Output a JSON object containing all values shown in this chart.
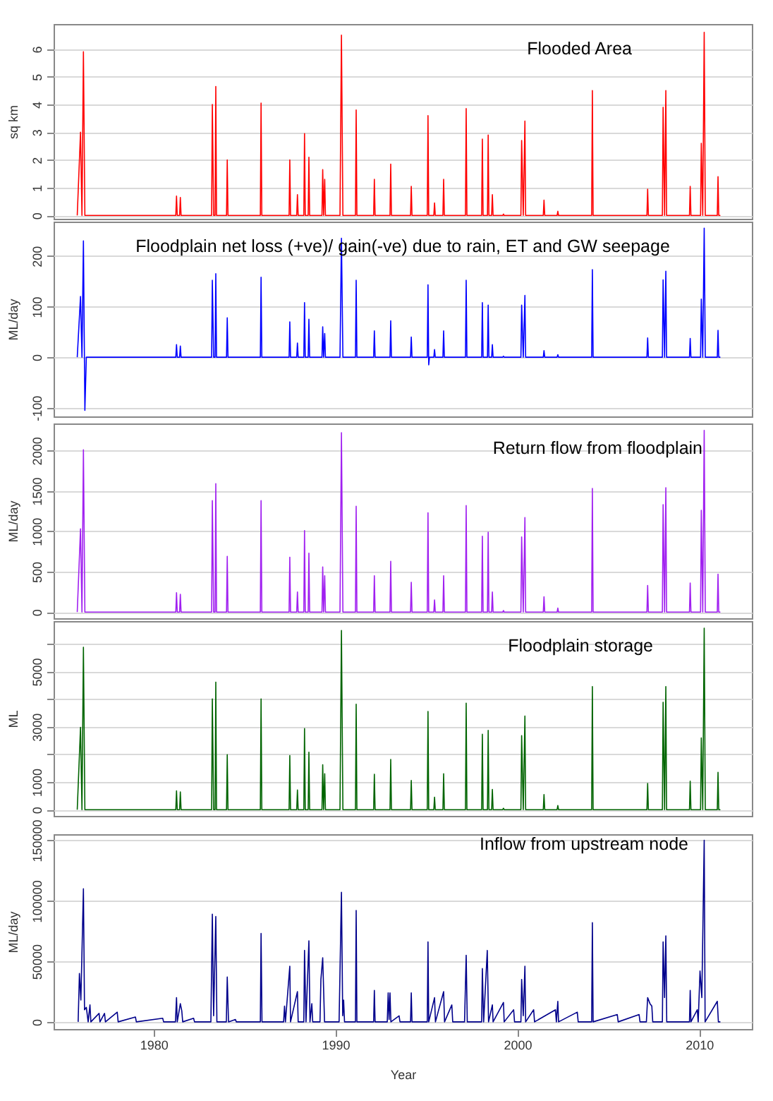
{
  "chart_data": [
    {
      "type": "line",
      "title": "Flooded Area",
      "ylabel": "sq km",
      "xlim": [
        1974.5,
        2012.9
      ],
      "ylim": [
        -0.12,
        6.9
      ],
      "yticks": [
        0,
        1,
        2,
        3,
        4,
        5,
        6
      ],
      "grid": "y",
      "tick_labels": "y",
      "series": [
        {
          "color": "#ff0000",
          "x": [
            1975.8,
            1975.98,
            1976.06,
            1976.14,
            1976.22,
            1976.3,
            1981.22,
            1981.26,
            1981.3,
            1981.43,
            1981.47,
            1981.51,
            1983.19,
            1983.23,
            1983.3,
            1983.38,
            1983.42,
            1983.46,
            1984.01,
            1984.05,
            1984.09,
            1985.87,
            1985.91,
            1985.95,
            1987.45,
            1987.49,
            1987.53,
            1987.87,
            1987.91,
            1987.95,
            1988.26,
            1988.3,
            1988.34,
            1988.5,
            1988.54,
            1988.58,
            1989.26,
            1989.3,
            1989.35,
            1989.41,
            1989.45,
            1990.25,
            1990.33,
            1990.41,
            1991.1,
            1991.14,
            1991.18,
            1992.1,
            1992.14,
            1992.18,
            1993.0,
            1993.04,
            1993.08,
            1994.13,
            1994.17,
            1994.21,
            1995.05,
            1995.09,
            1995.13,
            1995.17,
            1995.41,
            1995.45,
            1995.49,
            1995.91,
            1995.95,
            1995.99,
            1997.15,
            1997.19,
            1997.23,
            1998.04,
            1998.08,
            1998.12,
            1998.36,
            1998.4,
            1998.44,
            1998.59,
            1998.63,
            1998.67,
            1999.2,
            1999.24,
            1999.28,
            2000.2,
            2000.24,
            2000.33,
            2000.42,
            2000.46,
            2001.43,
            2001.47,
            2001.51,
            2002.19,
            2002.23,
            2002.27,
            2004.09,
            2004.13,
            2004.17,
            2007.13,
            2007.17,
            2007.21,
            2007.98,
            2008.02,
            2008.1,
            2008.17,
            2008.21,
            2009.47,
            2009.51,
            2009.55,
            2010.08,
            2010.12,
            2010.2,
            2010.28,
            2010.34,
            2011.0,
            2011.04,
            2011.08,
            2011.17
          ],
          "values": [
            0,
            3.0,
            0,
            5.9,
            0,
            0,
            0,
            0.7,
            0,
            0,
            0.65,
            0,
            0,
            4.0,
            0,
            0,
            4.65,
            0,
            0,
            2.0,
            0,
            0,
            4.05,
            0,
            0,
            2.0,
            0,
            0,
            0.75,
            0,
            0,
            2.95,
            0,
            0,
            2.1,
            0,
            0,
            1.65,
            0,
            1.3,
            0,
            0,
            6.5,
            0,
            0,
            3.8,
            0,
            0,
            1.3,
            0,
            0,
            1.85,
            0,
            0,
            1.05,
            0,
            0,
            3.6,
            0,
            0,
            0,
            0.45,
            0,
            0,
            1.3,
            0,
            0,
            3.85,
            0,
            0,
            2.75,
            0,
            0,
            2.9,
            0,
            0,
            0.75,
            0,
            0,
            0.05,
            0,
            0,
            2.7,
            0,
            3.4,
            0,
            0,
            0.55,
            0,
            0,
            0.15,
            0,
            0,
            4.5,
            0,
            0,
            0.95,
            0,
            0,
            3.9,
            0,
            4.5,
            0,
            0,
            1.05,
            0,
            0,
            2.6,
            0,
            6.6,
            0,
            0,
            1.4,
            0,
            0
          ]
        }
      ]
    },
    {
      "type": "line",
      "title": "Floodplain net loss (+ve)/ gain(-ve) due to rain, ET and GW seepage",
      "ylabel": "ML/day",
      "xlim": [
        1974.5,
        2012.9
      ],
      "ylim": [
        -117,
        268
      ],
      "yticks": [
        -100,
        0,
        100,
        200
      ],
      "grid": "y",
      "tick_labels": "y",
      "series": [
        {
          "color": "#0000ff",
          "x": [
            1975.8,
            1975.98,
            1976.06,
            1976.14,
            1976.22,
            1976.3,
            1981.22,
            1981.26,
            1981.3,
            1981.43,
            1981.47,
            1981.51,
            1983.19,
            1983.23,
            1983.3,
            1983.38,
            1983.42,
            1983.46,
            1984.01,
            1984.05,
            1984.09,
            1985.87,
            1985.91,
            1985.95,
            1987.45,
            1987.49,
            1987.53,
            1987.87,
            1987.91,
            1987.95,
            1988.26,
            1988.3,
            1988.34,
            1988.5,
            1988.54,
            1988.58,
            1989.26,
            1989.3,
            1989.35,
            1989.41,
            1989.45,
            1990.25,
            1990.33,
            1990.41,
            1991.1,
            1991.14,
            1991.18,
            1992.1,
            1992.14,
            1992.18,
            1993.0,
            1993.04,
            1993.08,
            1994.13,
            1994.17,
            1994.21,
            1995.05,
            1995.09,
            1995.13,
            1995.17,
            1995.41,
            1995.45,
            1995.49,
            1995.91,
            1995.95,
            1995.99,
            1997.15,
            1997.19,
            1997.23,
            1998.04,
            1998.08,
            1998.12,
            1998.36,
            1998.4,
            1998.44,
            1998.59,
            1998.63,
            1998.67,
            1999.2,
            1999.24,
            1999.28,
            2000.2,
            2000.24,
            2000.33,
            2000.42,
            2000.46,
            2001.43,
            2001.47,
            2001.51,
            2002.19,
            2002.23,
            2002.27,
            2004.09,
            2004.13,
            2004.17,
            2007.13,
            2007.17,
            2007.21,
            2007.98,
            2008.02,
            2008.1,
            2008.17,
            2008.21,
            2009.47,
            2009.51,
            2009.55,
            2010.08,
            2010.12,
            2010.2,
            2010.28,
            2010.34,
            2011.0,
            2011.04,
            2011.08,
            2011.17
          ],
          "values": [
            0,
            120,
            0,
            230,
            -105,
            0,
            0,
            25,
            0,
            0,
            22,
            0,
            0,
            152,
            0,
            0,
            165,
            0,
            0,
            78,
            0,
            0,
            158,
            0,
            0,
            70,
            0,
            0,
            28,
            0,
            0,
            108,
            0,
            0,
            75,
            0,
            0,
            60,
            0,
            47,
            0,
            0,
            235,
            0,
            0,
            152,
            0,
            0,
            52,
            0,
            0,
            72,
            0,
            0,
            40,
            0,
            0,
            143,
            -15,
            0,
            0,
            15,
            0,
            0,
            52,
            0,
            0,
            152,
            0,
            0,
            108,
            0,
            0,
            103,
            0,
            0,
            25,
            0,
            0,
            2,
            0,
            0,
            103,
            0,
            122,
            0,
            0,
            13,
            0,
            0,
            5,
            0,
            0,
            173,
            0,
            0,
            38,
            0,
            0,
            153,
            0,
            170,
            0,
            0,
            37,
            0,
            0,
            115,
            0,
            255,
            0,
            0,
            53,
            0,
            0
          ]
        }
      ]
    },
    {
      "type": "line",
      "title": "Return flow from floodplain",
      "ylabel": "ML/day",
      "xlim": [
        1974.5,
        2012.9
      ],
      "ylim": [
        -76,
        2335
      ],
      "yticks": [
        0,
        500,
        1000,
        1500,
        2000
      ],
      "grid": "y",
      "tick_labels": "y",
      "series": [
        {
          "color": "#a020f0",
          "x": [
            1975.8,
            1975.98,
            1976.06,
            1976.14,
            1976.22,
            1976.3,
            1981.22,
            1981.26,
            1981.3,
            1981.43,
            1981.47,
            1981.51,
            1983.19,
            1983.23,
            1983.3,
            1983.38,
            1983.42,
            1983.46,
            1984.01,
            1984.05,
            1984.09,
            1985.87,
            1985.91,
            1985.95,
            1987.45,
            1987.49,
            1987.53,
            1987.87,
            1987.91,
            1987.95,
            1988.26,
            1988.3,
            1988.34,
            1988.5,
            1988.54,
            1988.58,
            1989.26,
            1989.3,
            1989.35,
            1989.41,
            1989.45,
            1990.25,
            1990.33,
            1990.41,
            1991.1,
            1991.14,
            1991.18,
            1992.1,
            1992.14,
            1992.18,
            1993.0,
            1993.04,
            1993.08,
            1994.13,
            1994.17,
            1994.21,
            1995.05,
            1995.09,
            1995.13,
            1995.17,
            1995.41,
            1995.45,
            1995.49,
            1995.91,
            1995.95,
            1995.99,
            1997.15,
            1997.19,
            1997.23,
            1998.04,
            1998.08,
            1998.12,
            1998.36,
            1998.4,
            1998.44,
            1998.59,
            1998.63,
            1998.67,
            1999.2,
            1999.24,
            1999.28,
            2000.2,
            2000.24,
            2000.33,
            2000.42,
            2000.46,
            2001.43,
            2001.47,
            2001.51,
            2002.19,
            2002.23,
            2002.27,
            2004.09,
            2004.13,
            2004.17,
            2007.13,
            2007.17,
            2007.21,
            2007.98,
            2008.02,
            2008.1,
            2008.17,
            2008.21,
            2009.47,
            2009.51,
            2009.55,
            2010.08,
            2010.12,
            2010.2,
            2010.28,
            2010.34,
            2011.0,
            2011.04,
            2011.08,
            2011.17
          ],
          "values": [
            0,
            1030,
            0,
            2010,
            0,
            0,
            0,
            240,
            0,
            0,
            220,
            0,
            0,
            1380,
            0,
            0,
            1590,
            0,
            0,
            690,
            0,
            0,
            1380,
            0,
            0,
            680,
            0,
            0,
            250,
            0,
            0,
            1010,
            0,
            0,
            730,
            0,
            0,
            560,
            0,
            450,
            0,
            0,
            2220,
            0,
            0,
            1310,
            0,
            0,
            450,
            0,
            0,
            630,
            0,
            0,
            370,
            0,
            0,
            1230,
            0,
            0,
            0,
            150,
            0,
            0,
            450,
            0,
            0,
            1320,
            0,
            0,
            940,
            0,
            0,
            990,
            0,
            0,
            250,
            0,
            0,
            20,
            0,
            0,
            930,
            0,
            1170,
            0,
            0,
            190,
            0,
            0,
            50,
            0,
            0,
            1530,
            0,
            0,
            330,
            0,
            0,
            1330,
            0,
            1540,
            0,
            0,
            360,
            0,
            0,
            1260,
            0,
            2250,
            0,
            0,
            470,
            0,
            0
          ]
        }
      ]
    },
    {
      "type": "line",
      "title": "Floodplain storage",
      "ylabel": "ML",
      "xlim": [
        1974.5,
        2012.9
      ],
      "ylim": [
        -225,
        6830
      ],
      "yticks": [
        0,
        1000,
        {
          "value": 2000,
          "label": null
        },
        3000,
        {
          "value": 4000,
          "label": null
        },
        5000,
        {
          "value": 6000,
          "label": null
        }
      ],
      "grid": "y",
      "tick_labels": "y",
      "series": [
        {
          "color": "#006400",
          "x": [
            1975.8,
            1975.98,
            1976.06,
            1976.14,
            1976.22,
            1976.3,
            1981.22,
            1981.26,
            1981.3,
            1981.43,
            1981.47,
            1981.51,
            1983.19,
            1983.23,
            1983.3,
            1983.38,
            1983.42,
            1983.46,
            1984.01,
            1984.05,
            1984.09,
            1985.87,
            1985.91,
            1985.95,
            1987.45,
            1987.49,
            1987.53,
            1987.87,
            1987.91,
            1987.95,
            1988.26,
            1988.3,
            1988.34,
            1988.5,
            1988.54,
            1988.58,
            1989.26,
            1989.3,
            1989.35,
            1989.41,
            1989.45,
            1990.25,
            1990.33,
            1990.41,
            1991.1,
            1991.14,
            1991.18,
            1992.1,
            1992.14,
            1992.18,
            1993.0,
            1993.04,
            1993.08,
            1994.13,
            1994.17,
            1994.21,
            1995.05,
            1995.09,
            1995.13,
            1995.17,
            1995.41,
            1995.45,
            1995.49,
            1995.91,
            1995.95,
            1995.99,
            1997.15,
            1997.19,
            1997.23,
            1998.04,
            1998.08,
            1998.12,
            1998.36,
            1998.4,
            1998.44,
            1998.59,
            1998.63,
            1998.67,
            1999.2,
            1999.24,
            1999.28,
            2000.2,
            2000.24,
            2000.33,
            2000.42,
            2000.46,
            2001.43,
            2001.47,
            2001.51,
            2002.19,
            2002.23,
            2002.27,
            2004.09,
            2004.13,
            2004.17,
            2007.13,
            2007.17,
            2007.21,
            2007.98,
            2008.02,
            2008.1,
            2008.17,
            2008.21,
            2009.47,
            2009.51,
            2009.55,
            2010.08,
            2010.12,
            2010.2,
            2010.28,
            2010.34,
            2011.0,
            2011.04,
            2011.08,
            2011.17
          ],
          "values": [
            0,
            2980,
            0,
            5880,
            0,
            0,
            0,
            680,
            0,
            0,
            640,
            0,
            0,
            4010,
            0,
            0,
            4620,
            0,
            0,
            1990,
            0,
            0,
            4010,
            0,
            0,
            1960,
            0,
            0,
            710,
            0,
            0,
            2940,
            0,
            0,
            2080,
            0,
            0,
            1630,
            0,
            1300,
            0,
            0,
            6490,
            0,
            0,
            3820,
            0,
            0,
            1280,
            0,
            0,
            1820,
            0,
            0,
            1060,
            0,
            0,
            3560,
            0,
            0,
            0,
            450,
            0,
            0,
            1300,
            0,
            0,
            3860,
            0,
            0,
            2730,
            0,
            0,
            2870,
            0,
            0,
            730,
            0,
            0,
            50,
            0,
            0,
            2680,
            0,
            3390,
            0,
            0,
            550,
            0,
            0,
            150,
            0,
            0,
            4460,
            0,
            0,
            950,
            0,
            0,
            3890,
            0,
            4460,
            0,
            0,
            1030,
            0,
            0,
            2600,
            0,
            6570,
            0,
            0,
            1350,
            0,
            0
          ]
        }
      ]
    },
    {
      "type": "line",
      "title": "Inflow from upstream node",
      "xlabel": "Year",
      "ylabel": "ML/day",
      "xlim": [
        1974.5,
        2012.9
      ],
      "xticks": [
        1980,
        1990,
        2000,
        2010
      ],
      "ylim": [
        -5900,
        155000
      ],
      "yticks": [
        0,
        50000,
        100000,
        150000
      ],
      "grid": "y",
      "series": [
        {
          "color": "#00008b",
          "x": [
            1975.85,
            1975.92,
            1976.0,
            1976.14,
            1976.2,
            1976.3,
            1976.4,
            1976.5,
            1976.55,
            1977.0,
            1977.05,
            1977.3,
            1977.35,
            1978.0,
            1978.05,
            1979.0,
            1979.05,
            1980.5,
            1980.55,
            1981.2,
            1981.26,
            1981.3,
            1981.47,
            1981.55,
            1981.6,
            1982.2,
            1982.25,
            1983.15,
            1983.23,
            1983.3,
            1983.42,
            1983.48,
            1984.0,
            1984.05,
            1984.12,
            1984.5,
            1984.55,
            1985.87,
            1985.91,
            1985.96,
            1987.15,
            1987.2,
            1987.25,
            1987.49,
            1987.53,
            1987.91,
            1987.95,
            1988.26,
            1988.3,
            1988.38,
            1988.54,
            1988.6,
            1988.7,
            1988.75,
            1989.15,
            1989.2,
            1989.3,
            1989.4,
            1990.2,
            1990.33,
            1990.4,
            1990.45,
            1990.5,
            1991.1,
            1991.14,
            1991.18,
            1992.1,
            1992.14,
            1992.18,
            1992.85,
            1992.9,
            1992.95,
            1993.0,
            1993.05,
            1993.5,
            1993.55,
            1994.13,
            1994.17,
            1994.21,
            1995.05,
            1995.09,
            1995.13,
            1995.45,
            1995.5,
            1995.95,
            1996.0,
            1996.4,
            1996.45,
            1997.1,
            1997.19,
            1997.25,
            1998.04,
            1998.08,
            1998.15,
            1998.35,
            1998.42,
            1998.63,
            1998.67,
            1999.24,
            1999.28,
            1999.8,
            1999.85,
            2000.2,
            2000.24,
            2000.33,
            2000.42,
            2000.46,
            2000.9,
            2000.95,
            2002.1,
            2002.15,
            2002.23,
            2002.27,
            2003.3,
            2003.35,
            2004.09,
            2004.13,
            2004.17,
            2005.5,
            2005.55,
            2006.7,
            2006.75,
            2007.1,
            2007.17,
            2007.3,
            2007.4,
            2007.45,
            2007.98,
            2008.02,
            2008.1,
            2008.17,
            2008.22,
            2009.47,
            2009.51,
            2009.55,
            2009.9,
            2009.95,
            2010.05,
            2010.15,
            2010.28,
            2010.33,
            2011.0,
            2011.06,
            2011.17
          ],
          "values": [
            0,
            40000,
            18000,
            110000,
            10000,
            12000,
            0,
            14000,
            0,
            7000,
            0,
            7000,
            0,
            8000,
            0,
            4000,
            0,
            3000,
            0,
            0,
            20000,
            0,
            15000,
            9000,
            0,
            3000,
            0,
            0,
            89000,
            5000,
            87000,
            0,
            0,
            37000,
            0,
            2000,
            0,
            0,
            73000,
            0,
            0,
            13000,
            0,
            46000,
            0,
            25000,
            0,
            0,
            59000,
            0,
            67000,
            0,
            15000,
            0,
            0,
            35000,
            53000,
            0,
            0,
            107000,
            5000,
            18000,
            0,
            0,
            92000,
            0,
            0,
            26000,
            0,
            0,
            24000,
            2000,
            24000,
            0,
            5000,
            0,
            0,
            24000,
            0,
            0,
            66000,
            0,
            20000,
            0,
            25000,
            0,
            14000,
            0,
            0,
            55000,
            0,
            0,
            44000,
            0,
            59000,
            0,
            14000,
            0,
            16000,
            0,
            10000,
            0,
            0,
            35000,
            5000,
            46000,
            0,
            10000,
            0,
            10000,
            0,
            17000,
            0,
            8000,
            0,
            0,
            82000,
            0,
            6000,
            0,
            6000,
            0,
            0,
            20000,
            15000,
            13000,
            0,
            0,
            66000,
            20000,
            71000,
            0,
            0,
            26000,
            0,
            10000,
            0,
            42000,
            20000,
            150000,
            0,
            17000,
            0,
            0
          ]
        }
      ]
    }
  ]
}
